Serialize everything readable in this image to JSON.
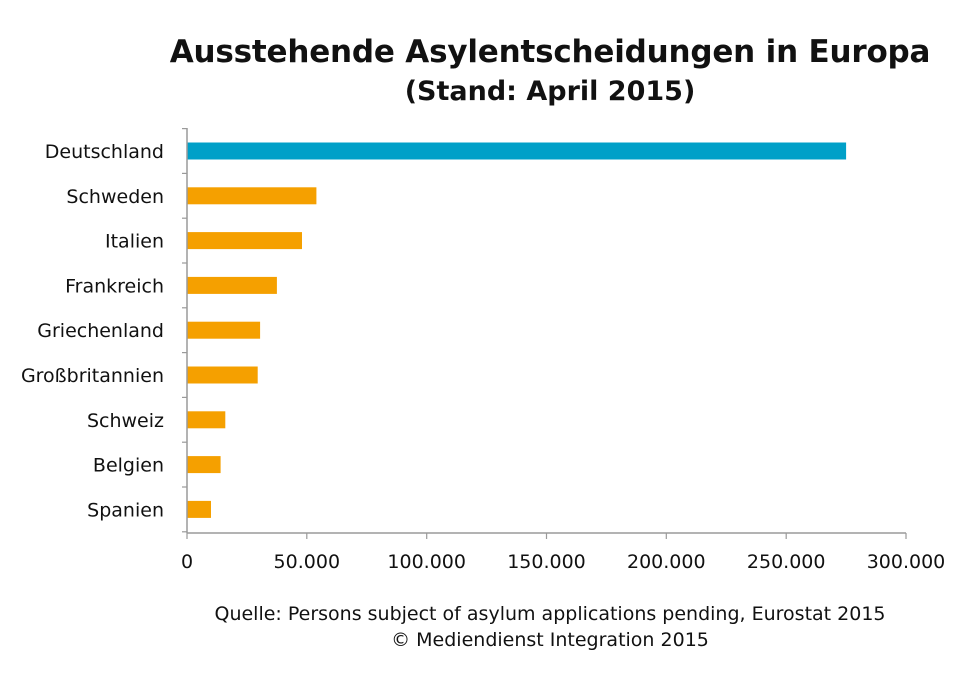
{
  "chart_data": {
    "type": "bar",
    "orientation": "horizontal",
    "title": "Ausstehende Asylentscheidungen in Europa",
    "subtitle": "(Stand: April 2015)",
    "categories": [
      "Deutschland",
      "Schweden",
      "Italien",
      "Frankreich",
      "Griechenland",
      "Großbritannien",
      "Schweiz",
      "Belgien",
      "Spanien"
    ],
    "values": [
      275000,
      54000,
      48000,
      37500,
      30500,
      29500,
      16000,
      14000,
      10000
    ],
    "bar_colors": [
      "#00a0c8",
      "#f5a000",
      "#f5a000",
      "#f5a000",
      "#f5a000",
      "#f5a000",
      "#f5a000",
      "#f5a000",
      "#f5a000"
    ],
    "xlim": [
      0,
      300000
    ],
    "x_ticks": [
      0,
      50000,
      100000,
      150000,
      200000,
      250000,
      300000
    ],
    "x_tick_labels": [
      "0",
      "50.000",
      "100.000",
      "150.000",
      "200.000",
      "250.000",
      "300.000"
    ],
    "xlabel": "",
    "ylabel": "",
    "grid": false,
    "legend": "none"
  },
  "footer": {
    "source": "Quelle: Persons subject of asylum applications pending, Eurostat 2015",
    "copyright": "© Mediendienst Integration 2015"
  }
}
